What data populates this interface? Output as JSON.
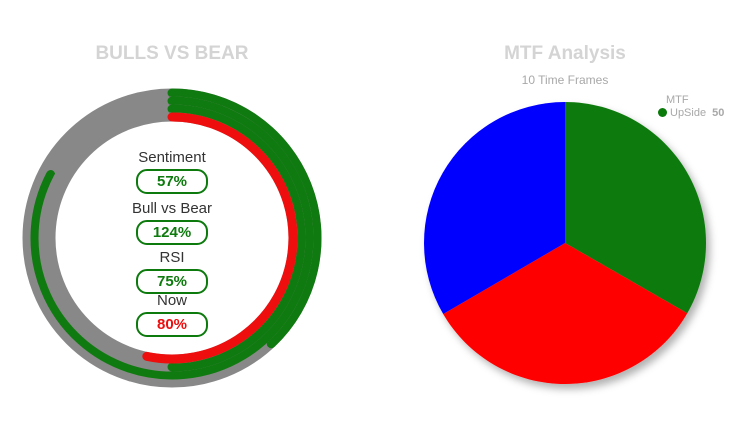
{
  "bulls_panel": {
    "title": "BULLS VS BEAR",
    "colors": {
      "ring_bg": "#e4e8f6",
      "track": "#888888",
      "green": "#0f7a0f",
      "red": "#ee0e0e"
    },
    "metrics": [
      {
        "label": "Sentiment",
        "value": "57%",
        "value_color": "#0d7a0d"
      },
      {
        "label": "Bull vs Bear",
        "value": "124%",
        "value_color": "#0d7a0d"
      },
      {
        "label": "RSI",
        "value": "75%",
        "value_color": "#0d7a0d"
      },
      {
        "label": "Now",
        "value": "80%",
        "value_color": "#ee0e0e"
      }
    ]
  },
  "mtf_panel": {
    "title": "MTF Analysis",
    "subtitle": "10 Time Frames",
    "legend": {
      "title": "MTF",
      "item_label": "UpSide",
      "item_value": "50"
    }
  },
  "chart_data": [
    {
      "type": "radial-bar",
      "title": "BULLS VS BEAR",
      "series": [
        {
          "name": "Sentiment",
          "value": 57,
          "color": "#0f7a0f"
        },
        {
          "name": "Bull vs Bear",
          "value": 124,
          "color": "#0f7a0f"
        },
        {
          "name": "RSI",
          "value": 75,
          "color": "#0f7a0f"
        },
        {
          "name": "Now",
          "value": 80,
          "color": "#ee0e0e"
        }
      ]
    },
    {
      "type": "pie",
      "title": "MTF Analysis",
      "subtitle": "10 Time Frames",
      "slices": [
        {
          "fraction": 0.333,
          "color": "#0a7a0a"
        },
        {
          "fraction": 0.333,
          "color": "#ff0000"
        },
        {
          "fraction": 0.334,
          "color": "#0000ff"
        }
      ]
    }
  ]
}
